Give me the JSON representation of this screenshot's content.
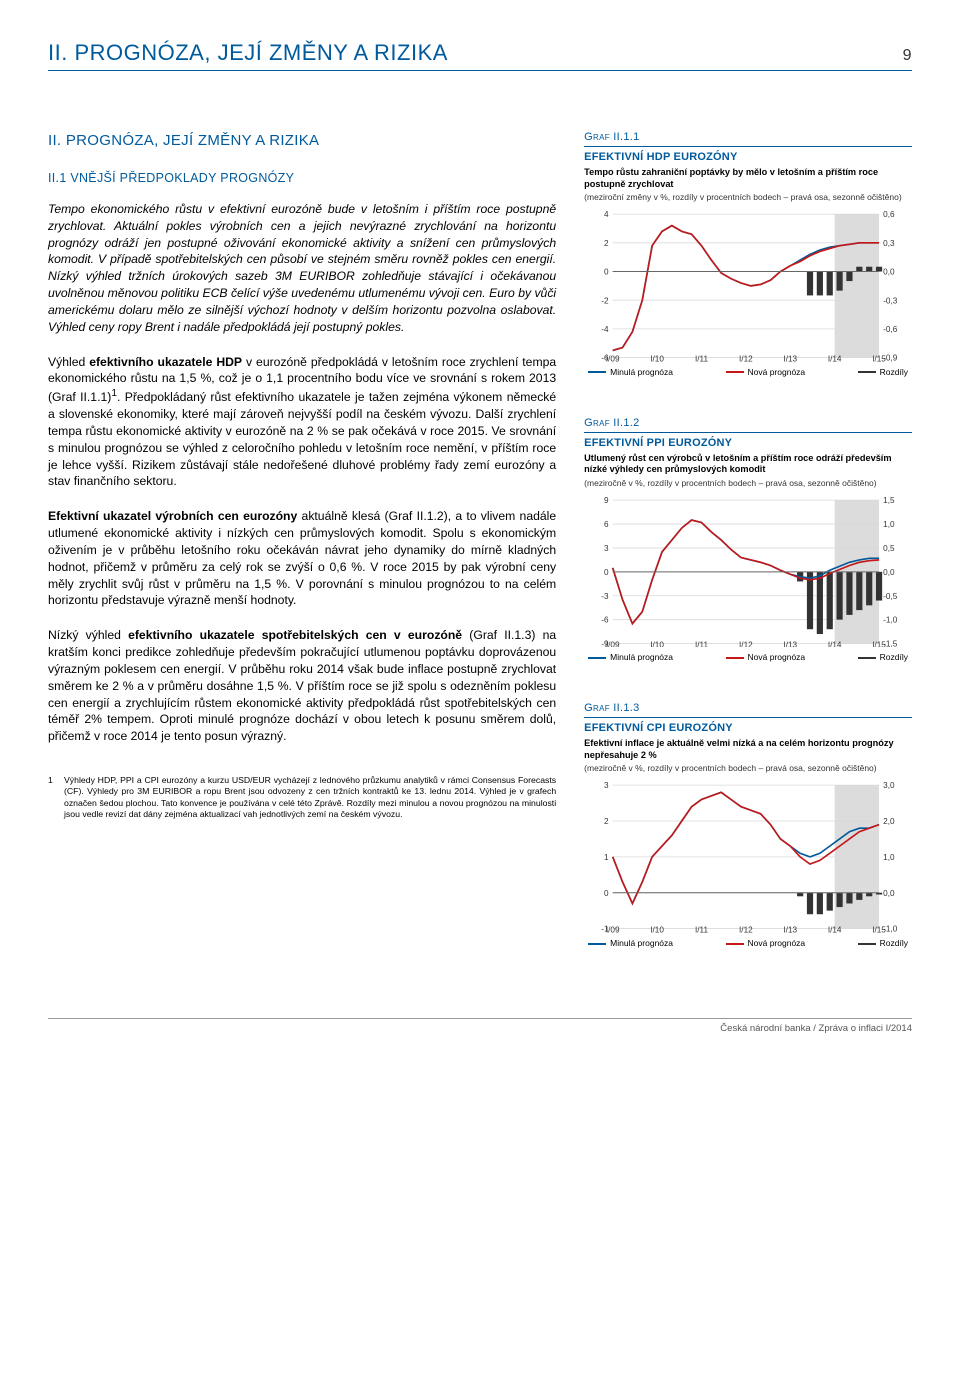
{
  "page_number": "9",
  "top_header": "II.  PROGNÓZA, JEJÍ ZMĚNY A RIZIKA",
  "section_heading": "II.  PROGNÓZA, JEJÍ ZMĚNY A RIZIKA",
  "subsection_heading": "II.1  VNĚJŠÍ PŘEDPOKLADY PROGNÓZY",
  "para1": "Tempo ekonomického růstu v efektivní eurozóně bude v letošním i příštím roce postupně zrychlovat. Aktuální pokles výrobních cen a jejich nevýrazné zrychlování na horizontu prognózy odráží jen postupné oživování ekonomické aktivity a snížení cen průmyslových komodit. V případě spotřebitelských cen působí ve stejném směru rovněž pokles cen energií. Nízký výhled tržních úrokových sazeb 3M EURIBOR zohledňuje stávající i očekávanou uvolněnou měnovou politiku ECB čelící výše uvedenému utlumenému vývoji cen. Euro by vůči americkému dolaru mělo ze silnější výchozí hodnoty v delším horizontu pozvolna oslabovat. Výhled ceny ropy Brent i nadále předpokládá její postupný pokles.",
  "para2_html": "Výhled <b>efektivního ukazatele HDP</b> v eurozóně předpokládá v letošním roce zrychlení tempa ekonomického růstu na 1,5 %, což je o 1,1 procentního bodu více ve srovnání s rokem 2013 (Graf II.1.1)<sup>1</sup>. Předpokládaný růst efektivního ukazatele je tažen zejména výkonem německé a slovenské ekonomiky, které mají zároveň nejvyšší podíl na českém vývozu. Další zrychlení tempa růstu ekonomické aktivity v eurozóně na 2 % se pak očekává v roce 2015. Ve srovnání s minulou prognózou se výhled z celoročního pohledu v letošním roce nemění, v příštím roce je lehce vyšší. Rizikem zůstávají stále nedořešené dluhové problémy řady zemí eurozóny a stav finančního sektoru.",
  "para3_html": "<b>Efektivní ukazatel výrobních cen eurozóny</b> aktuálně klesá (Graf II.1.2), a to vlivem nadále utlumené ekonomické aktivity i nízkých cen průmyslových komodit. Spolu s ekonomickým oživením je v průběhu letošního roku očekáván návrat jeho dynamiky do mírně kladných hodnot, přičemž v průměru za celý rok se zvýší o 0,6 %. V roce 2015 by pak výrobní ceny měly zrychlit svůj růst v průměru na 1,5 %. V porovnání s minulou prognózou to na celém horizontu představuje výrazně menší hodnoty.",
  "para4_html": "Nízký výhled <b>efektivního ukazatele spotřebitelských cen v eurozóně</b> (Graf II.1.3) na kratším konci predikce zohledňuje především pokračující utlumenou poptávku doprovázenou výrazným poklesem cen energií. V průběhu roku 2014 však bude inflace postupně zrychlovat směrem ke 2 % a v průměru dosáhne 1,5 %. V příštím roce se již spolu s odezněním poklesu cen energií a zrychlujícím růstem ekonomické aktivity předpokládá růst spotřebitelských cen téměř 2% tempem. Oproti minulé prognóze dochází v obou letech k posunu směrem dolů, přičemž v roce 2014 je tento posun výrazný.",
  "footnote_num": "1",
  "footnote_text": "Výhledy HDP, PPI a CPI eurozóny a kurzu USD/EUR vycházejí z lednového průzkumu analytiků v rámci Consensus Forecasts (CF). Výhledy pro 3M EURIBOR a ropu Brent jsou odvozeny z cen tržních kontraktů ke 13. lednu 2014. Výhled je v grafech označen šedou plochou. Tato konvence je používána v celé této Zprávě. Rozdíly mezi minulou a novou prognózou na minulosti jsou vedle revizí dat dány zejména aktualizací vah jednotlivých zemí na českém vývozu.",
  "footer_text": "Česká národní banka / Zpráva o inflaci I/2014",
  "chart1": {
    "code": "Graf II.1.1",
    "title": "EFEKTIVNÍ HDP EUROZÓNY",
    "sub": "Tempo růstu zahraniční poptávky by mělo v letošním a příštím roce postupně zrychlovat",
    "note": "(meziroční změny v %, rozdíly v procentních bodech – pravá osa, sezonně očištěno)",
    "x_labels": [
      "I/09",
      "I/10",
      "I/11",
      "I/12",
      "I/13",
      "I/14",
      "I/15"
    ],
    "y_left": {
      "min": -6,
      "max": 4,
      "ticks": [
        4,
        2,
        0,
        -2,
        -4,
        -6
      ]
    },
    "y_right": {
      "min": -0.9,
      "max": 0.6,
      "ticks": [
        0.6,
        0.3,
        0.0,
        -0.3,
        -0.6,
        -0.9
      ]
    },
    "forecast_start_x": 5.0,
    "blue": [
      -5.5,
      -5.3,
      -4.2,
      -2.0,
      1.8,
      2.8,
      3.2,
      2.8,
      2.6,
      1.8,
      0.8,
      -0.1,
      -0.5,
      -0.8,
      -1.0,
      -0.9,
      -0.6,
      0.0,
      0.4,
      0.8,
      1.2,
      1.5,
      1.7,
      1.8,
      1.9,
      2.0,
      2.0,
      2.0
    ],
    "red": [
      -5.5,
      -5.3,
      -4.2,
      -2.0,
      1.8,
      2.8,
      3.2,
      2.8,
      2.6,
      1.8,
      0.8,
      -0.1,
      -0.5,
      -0.8,
      -1.0,
      -0.9,
      -0.6,
      0.0,
      0.4,
      0.7,
      1.1,
      1.4,
      1.6,
      1.8,
      1.9,
      2.0,
      2.0,
      2.0
    ],
    "bars": [
      0,
      0,
      0,
      0,
      0,
      0,
      0,
      0,
      0,
      0,
      0,
      0,
      0,
      0,
      0,
      0,
      0,
      0,
      0,
      0,
      -0.25,
      -0.25,
      -0.25,
      -0.2,
      -0.1,
      0.05,
      0.05,
      0.05
    ],
    "colors": {
      "blue": "#005a9c",
      "red": "#c41818",
      "bar": "#333",
      "forecast_band": "#dcdcdc",
      "grid": "#d9d9d9",
      "axis": "#666"
    },
    "legend": [
      "Minulá prognóza",
      "Nová prognóza",
      "Rozdíly"
    ]
  },
  "chart2": {
    "code": "Graf II.1.2",
    "title": "EFEKTIVNÍ PPI EUROZÓNY",
    "sub": "Utlumený růst cen výrobců v letošním a příštím roce odráží především nízké výhledy cen průmyslových komodit",
    "note": "(meziročně v %, rozdíly v procentních bodech – pravá osa, sezonně očištěno)",
    "x_labels": [
      "I/09",
      "I/10",
      "I/11",
      "I/12",
      "I/13",
      "I/14",
      "I/15"
    ],
    "y_left": {
      "min": -9,
      "max": 9,
      "ticks": [
        9,
        6,
        3,
        0,
        -3,
        -6,
        -9
      ]
    },
    "y_right": {
      "min": -1.5,
      "max": 1.5,
      "ticks": [
        1.5,
        1.0,
        0.5,
        -0.0,
        -0.5,
        -1.0,
        -1.5
      ]
    },
    "forecast_start_x": 5.0,
    "blue": [
      0.5,
      -3.5,
      -6.5,
      -5.0,
      -1.0,
      2.5,
      4.0,
      5.5,
      6.5,
      6.2,
      5.0,
      4.0,
      2.8,
      1.8,
      1.5,
      1.2,
      0.8,
      0.2,
      -0.3,
      -0.6,
      -0.8,
      -0.5,
      0.2,
      0.7,
      1.2,
      1.5,
      1.7,
      1.7
    ],
    "red": [
      0.5,
      -3.5,
      -6.5,
      -5.0,
      -1.0,
      2.5,
      4.0,
      5.5,
      6.5,
      6.2,
      5.0,
      4.0,
      2.8,
      1.8,
      1.5,
      1.2,
      0.8,
      0.2,
      -0.3,
      -0.8,
      -1.0,
      -0.8,
      -0.2,
      0.3,
      0.8,
      1.2,
      1.4,
      1.5
    ],
    "bars": [
      0,
      0,
      0,
      0,
      0,
      0,
      0,
      0,
      0,
      0,
      0,
      0,
      0,
      0,
      0,
      0,
      0,
      0,
      0,
      -0.2,
      -1.2,
      -1.3,
      -1.2,
      -1.0,
      -0.9,
      -0.8,
      -0.7,
      -0.6
    ],
    "colors": {
      "blue": "#005a9c",
      "red": "#c41818",
      "bar": "#333",
      "forecast_band": "#dcdcdc",
      "grid": "#d9d9d9",
      "axis": "#666"
    },
    "legend": [
      "Minulá prognóza",
      "Nová prognóza",
      "Rozdíly"
    ]
  },
  "chart3": {
    "code": "Graf II.1.3",
    "title": "EFEKTIVNÍ CPI EUROZÓNY",
    "sub": "Efektivní inflace je aktuálně velmi nízká a na celém horizontu prognózy nepřesahuje 2 %",
    "note": "(meziročně v %, rozdíly v procentních bodech – pravá osa, sezonně očištěno)",
    "x_labels": [
      "I/09",
      "I/10",
      "I/11",
      "I/12",
      "I/13",
      "I/14",
      "I/15"
    ],
    "y_left": {
      "min": -1,
      "max": 3,
      "ticks": [
        3,
        2,
        1,
        0,
        -1
      ]
    },
    "y_right": {
      "min": -1,
      "max": 3,
      "ticks": [
        3,
        2,
        1,
        0,
        -1
      ]
    },
    "forecast_start_x": 5.0,
    "blue": [
      1.0,
      0.3,
      -0.3,
      0.3,
      1.0,
      1.3,
      1.6,
      2.0,
      2.4,
      2.6,
      2.7,
      2.8,
      2.6,
      2.4,
      2.3,
      2.2,
      1.9,
      1.5,
      1.3,
      1.1,
      1.0,
      1.1,
      1.3,
      1.5,
      1.7,
      1.8,
      1.8,
      1.9
    ],
    "red": [
      1.0,
      0.3,
      -0.3,
      0.3,
      1.0,
      1.3,
      1.6,
      2.0,
      2.4,
      2.6,
      2.7,
      2.8,
      2.6,
      2.4,
      2.3,
      2.2,
      1.9,
      1.5,
      1.3,
      1.0,
      0.8,
      0.9,
      1.1,
      1.3,
      1.5,
      1.7,
      1.8,
      1.9
    ],
    "bars": [
      0,
      0,
      0,
      0,
      0,
      0,
      0,
      0,
      0,
      0,
      0,
      0,
      0,
      0,
      0,
      0,
      0,
      0,
      0,
      -0.1,
      -0.6,
      -0.6,
      -0.5,
      -0.4,
      -0.3,
      -0.2,
      -0.1,
      -0.05
    ],
    "colors": {
      "blue": "#005a9c",
      "red": "#c41818",
      "bar": "#333",
      "forecast_band": "#dcdcdc",
      "grid": "#d9d9d9",
      "axis": "#666"
    },
    "legend": [
      "Minulá prognóza",
      "Nová prognóza",
      "Rozdíly"
    ]
  }
}
